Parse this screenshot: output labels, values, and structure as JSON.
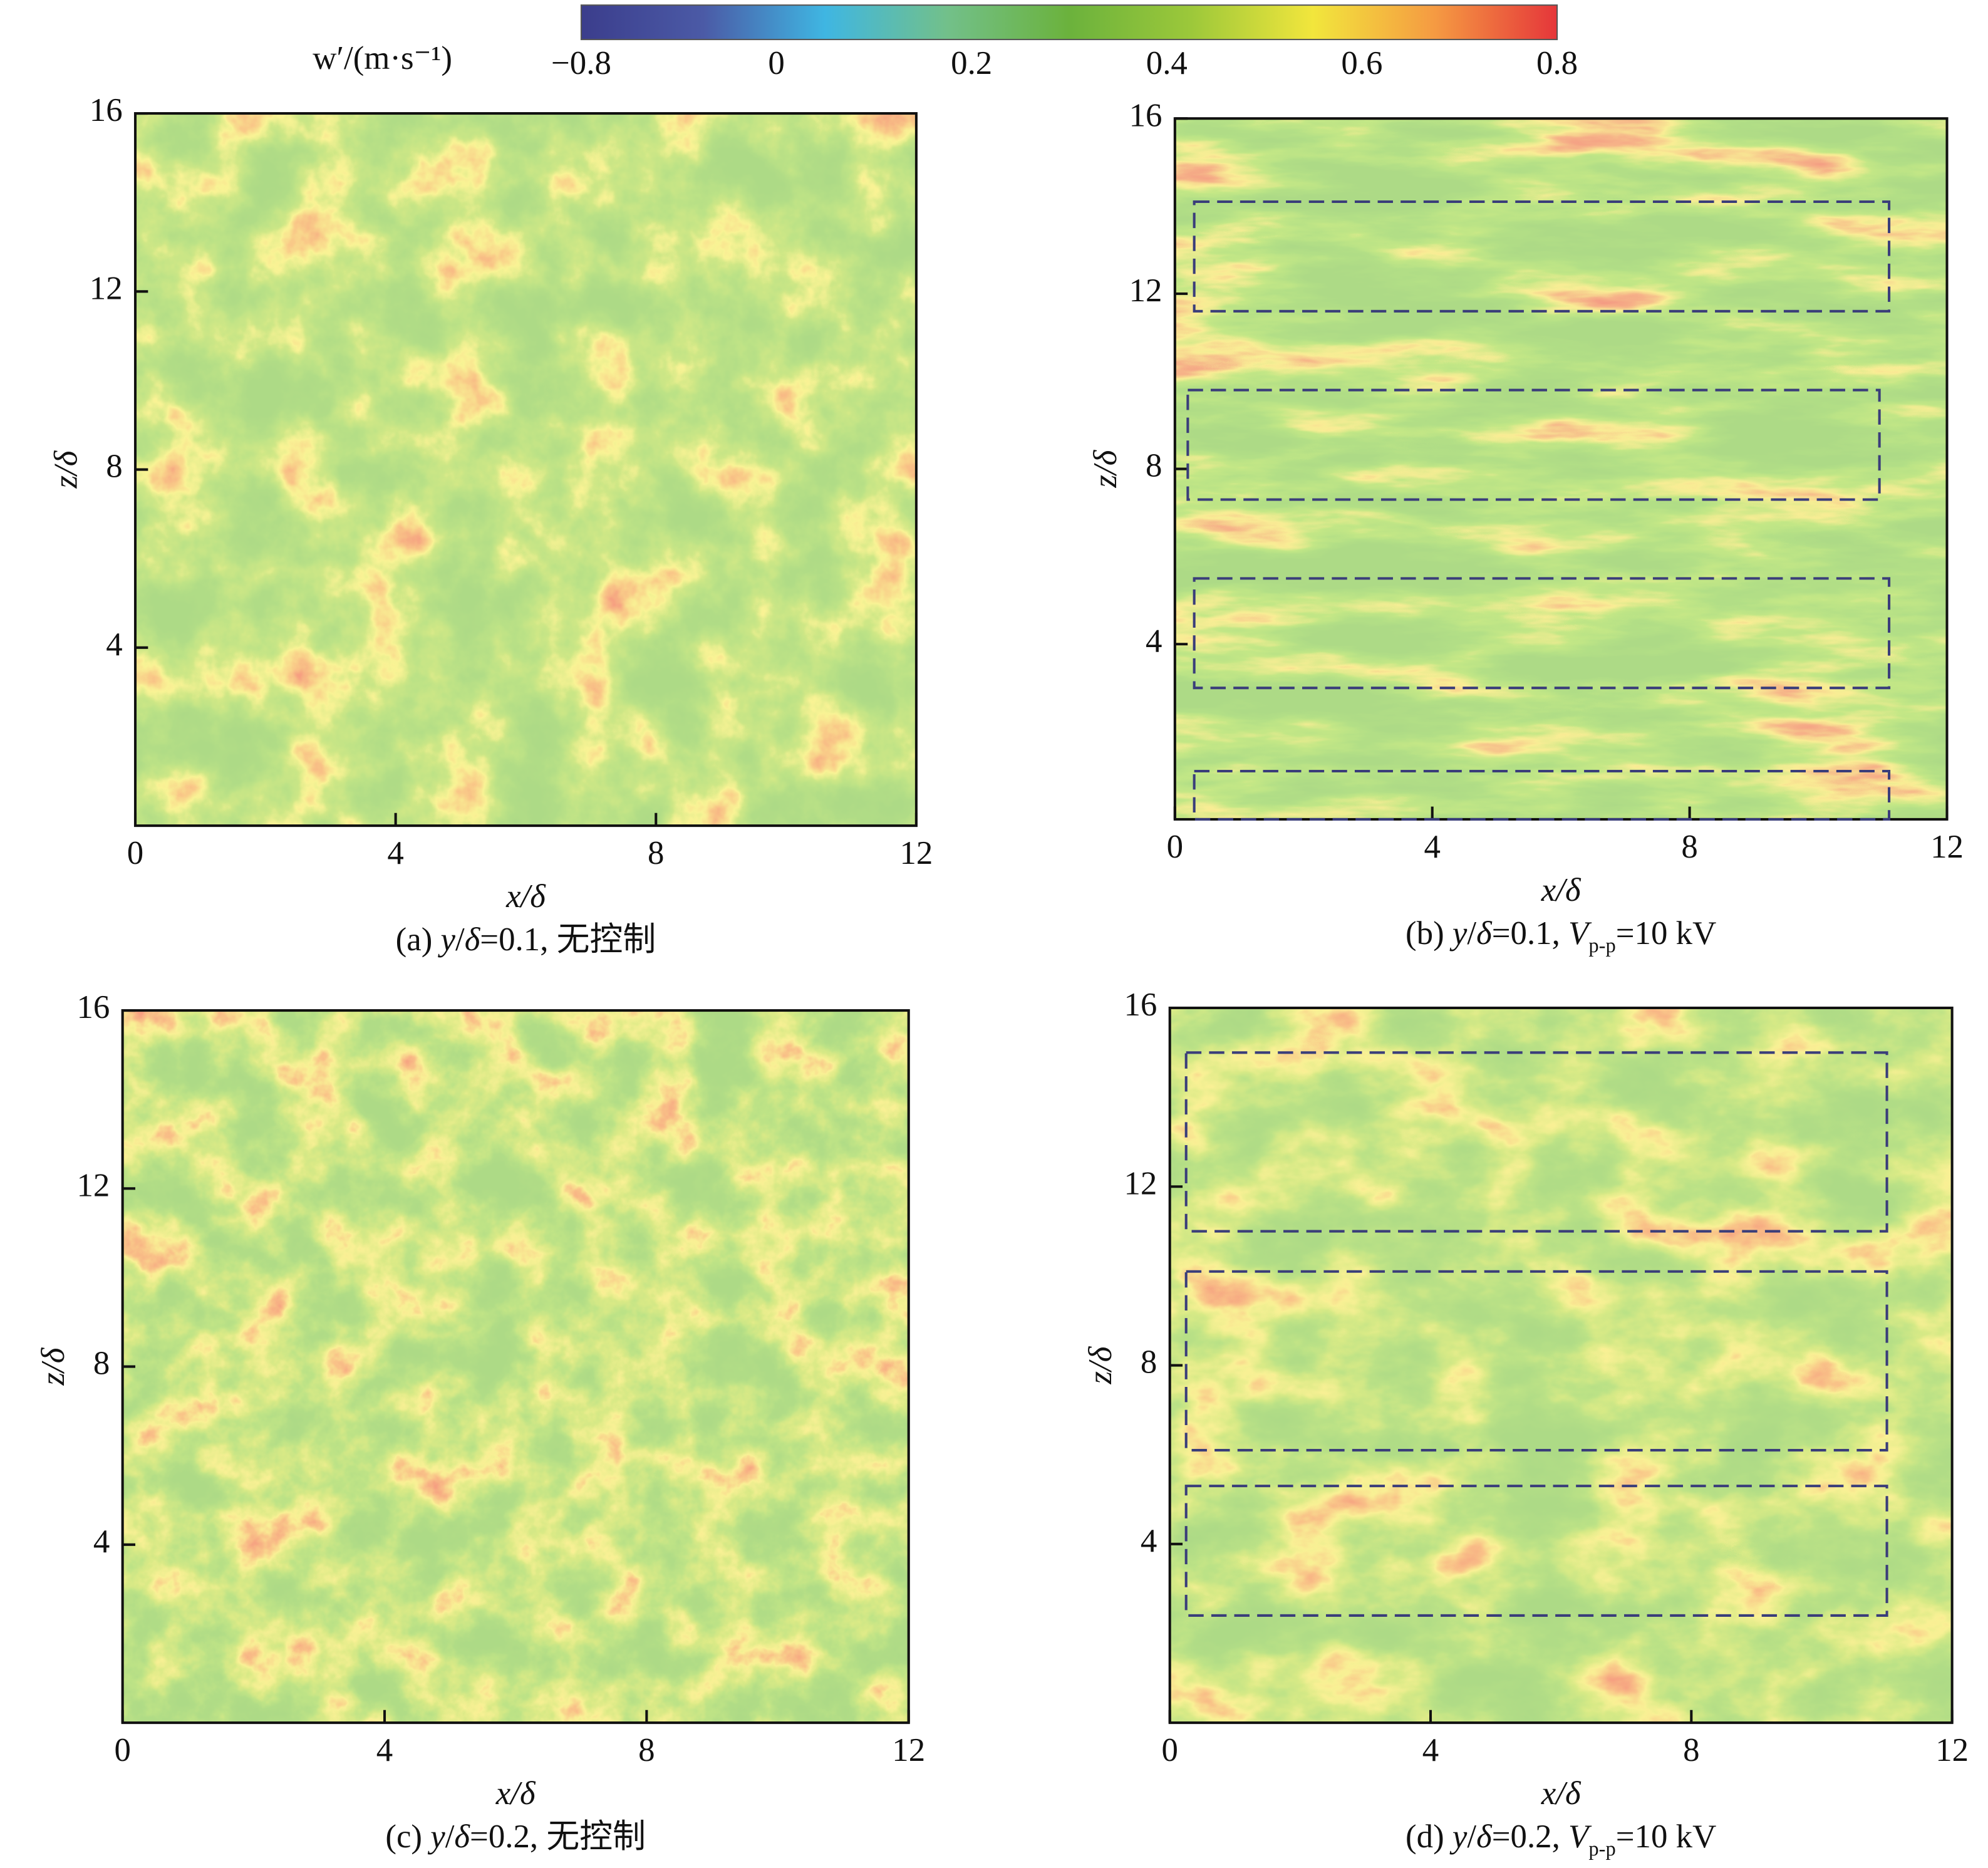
{
  "colorbar": {
    "label": "w′/(m·s⁻¹)",
    "colors": [
      "#3b3d8c",
      "#4b5aa6",
      "#3fb6e2",
      "#72c08a",
      "#6bb23c",
      "#9cc83a",
      "#f2e63c",
      "#f59a42",
      "#e5363a"
    ],
    "ticks": [
      {
        "value": -0.8,
        "label": "−0.8"
      },
      0,
      0.2,
      0.4,
      0.6,
      0.8
    ]
  },
  "chart_data": [
    {
      "type": "heatmap",
      "xlabel": "x/δ",
      "ylabel": "z/δ",
      "xlim": [
        0,
        12
      ],
      "ylim": [
        0,
        16
      ],
      "xticks": [
        0,
        4,
        8,
        12
      ],
      "yticks": [
        4,
        8,
        12,
        16
      ],
      "caption": [
        {
          "text": "(a) "
        },
        {
          "text": "y",
          "italic": true
        },
        {
          "text": "/"
        },
        {
          "text": "δ",
          "italic": true
        },
        {
          "text": "=0.1, 无控制"
        }
      ],
      "boxes": []
    },
    {
      "type": "heatmap",
      "xlabel": "x/δ",
      "ylabel": "z/δ",
      "xlim": [
        0,
        12
      ],
      "ylim": [
        0,
        16
      ],
      "xticks": [
        0,
        4,
        8,
        12
      ],
      "yticks": [
        4,
        8,
        12,
        16
      ],
      "caption": [
        {
          "text": "(b) "
        },
        {
          "text": "y",
          "italic": true
        },
        {
          "text": "/"
        },
        {
          "text": "δ",
          "italic": true
        },
        {
          "text": "=0.1, "
        },
        {
          "text": "V",
          "italic": true
        },
        {
          "text": "p-p",
          "sub": true
        },
        {
          "text": "=10 kV"
        }
      ],
      "boxes": [
        {
          "x": [
            0.3,
            11.1
          ],
          "z": [
            11.6,
            14.1
          ]
        },
        {
          "x": [
            0.2,
            10.95
          ],
          "z": [
            7.3,
            9.8
          ]
        },
        {
          "x": [
            0.3,
            11.1
          ],
          "z": [
            3.0,
            5.5
          ]
        },
        {
          "x": [
            0.3,
            11.1
          ],
          "z": [
            0,
            1.1
          ]
        }
      ]
    },
    {
      "type": "heatmap",
      "xlabel": "x/δ",
      "ylabel": "z/δ",
      "xlim": [
        0,
        12
      ],
      "ylim": [
        0,
        16
      ],
      "xticks": [
        0,
        4,
        8,
        12
      ],
      "yticks": [
        4,
        8,
        12,
        16
      ],
      "caption": [
        {
          "text": "(c) "
        },
        {
          "text": "y",
          "italic": true
        },
        {
          "text": "/"
        },
        {
          "text": "δ",
          "italic": true
        },
        {
          "text": "=0.2, 无控制"
        }
      ],
      "boxes": []
    },
    {
      "type": "heatmap",
      "xlabel": "x/δ",
      "ylabel": "z/δ",
      "xlim": [
        0,
        12
      ],
      "ylim": [
        0,
        16
      ],
      "xticks": [
        0,
        4,
        8,
        12
      ],
      "yticks": [
        4,
        8,
        12,
        16
      ],
      "caption": [
        {
          "text": "(d) "
        },
        {
          "text": "y",
          "italic": true
        },
        {
          "text": "/"
        },
        {
          "text": "δ",
          "italic": true
        },
        {
          "text": "=0.2, "
        },
        {
          "text": "V",
          "italic": true
        },
        {
          "text": "p-p",
          "sub": true
        },
        {
          "text": "=10 kV"
        }
      ],
      "boxes": [
        {
          "x": [
            0.25,
            11.0
          ],
          "z": [
            11.0,
            15.0
          ]
        },
        {
          "x": [
            0.25,
            11.0
          ],
          "z": [
            6.1,
            10.1
          ]
        },
        {
          "x": [
            0.25,
            11.0
          ],
          "z": [
            2.4,
            5.3
          ]
        }
      ]
    }
  ]
}
